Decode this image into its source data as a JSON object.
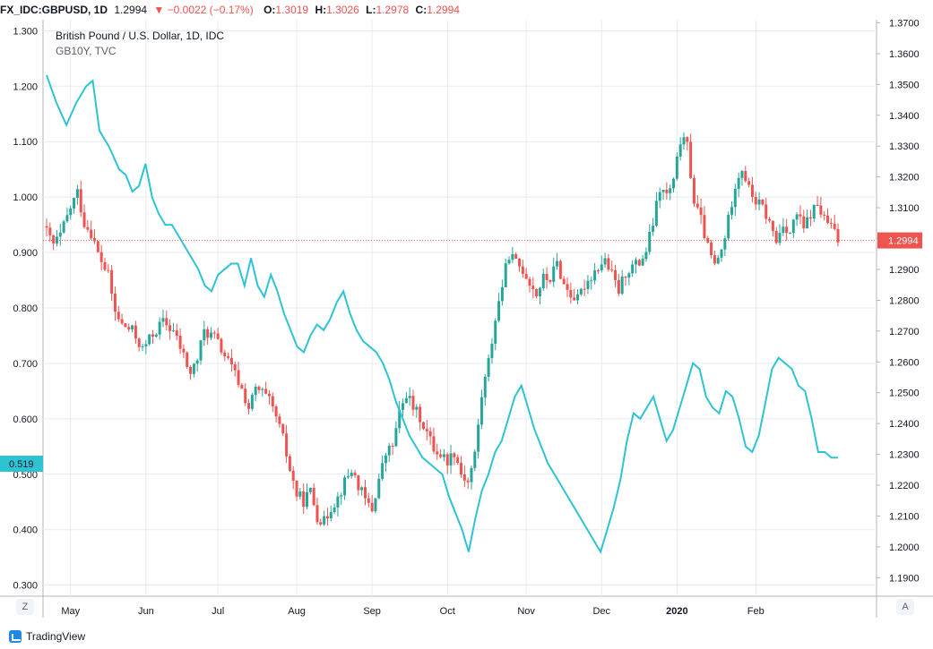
{
  "header": {
    "symbol": "FX_IDC:GBPUSD, 1D",
    "last": "1.2994",
    "change": "−0.0022 (−0.17%)",
    "o_label": "O:",
    "o_value": "1.3019",
    "h_label": "H:",
    "h_value": "1.3026",
    "l_label": "L:",
    "l_value": "1.2978",
    "c_label": "C:",
    "c_value": "1.2994"
  },
  "legend": {
    "line1": "British Pound / U.S. Dollar, 1D, IDC",
    "line2": "GB10Y, TVC"
  },
  "buttons": {
    "left_scale": "Z",
    "right_scale": "A"
  },
  "branding": "TradingView",
  "colors": {
    "up": "#26a69a",
    "down": "#ef5350",
    "bond_line": "#2ec3d3",
    "grid": "#e6eaf0",
    "text": "#131722",
    "price_line": "#ef5350"
  },
  "chart_data": {
    "type": "candlestick+line",
    "title": "British Pound / U.S. Dollar, 1D, IDC",
    "x_ticks": [
      "May",
      "Jun",
      "Jul",
      "Aug",
      "Sep",
      "Oct",
      "Nov",
      "Dec",
      "2020",
      "Feb"
    ],
    "left_axis": {
      "series": "GB10Y, TVC",
      "ticks": [
        "1.300",
        "1.200",
        "1.100",
        "1.000",
        "0.900",
        "0.800",
        "0.700",
        "0.600",
        "0.500",
        "0.400",
        "0.300"
      ],
      "ylim": [
        0.28,
        1.32
      ],
      "last_value_label": "0.519"
    },
    "right_axis": {
      "series": "British Pound / U.S. Dollar",
      "ticks": [
        "1.3700",
        "1.3600",
        "1.3500",
        "1.3400",
        "1.3300",
        "1.3200",
        "1.3100",
        "1.3000",
        "1.2900",
        "1.2800",
        "1.2700",
        "1.2600",
        "1.2500",
        "1.2400",
        "1.2300",
        "1.2200",
        "1.2100",
        "1.2000",
        "1.1900"
      ],
      "ylim": [
        1.184,
        1.371
      ],
      "last_value_label": "1.2994"
    },
    "gbpusd_close_keypoints": [
      [
        0,
        1.302
      ],
      [
        2,
        1.298
      ],
      [
        4,
        1.301
      ],
      [
        7,
        1.31
      ],
      [
        9,
        1.315
      ],
      [
        11,
        1.305
      ],
      [
        13,
        1.302
      ],
      [
        15,
        1.295
      ],
      [
        18,
        1.288
      ],
      [
        20,
        1.276
      ],
      [
        22,
        1.272
      ],
      [
        25,
        1.27
      ],
      [
        28,
        1.264
      ],
      [
        31,
        1.269
      ],
      [
        34,
        1.273
      ],
      [
        37,
        1.27
      ],
      [
        40,
        1.262
      ],
      [
        42,
        1.256
      ],
      [
        44,
        1.261
      ],
      [
        46,
        1.27
      ],
      [
        49,
        1.268
      ],
      [
        52,
        1.262
      ],
      [
        55,
        1.256
      ],
      [
        57,
        1.251
      ],
      [
        59,
        1.245
      ],
      [
        61,
        1.251
      ],
      [
        63,
        1.25
      ],
      [
        65,
        1.247
      ],
      [
        67,
        1.242
      ],
      [
        69,
        1.235
      ],
      [
        71,
        1.225
      ],
      [
        73,
        1.217
      ],
      [
        75,
        1.215
      ],
      [
        77,
        1.218
      ],
      [
        79,
        1.21
      ],
      [
        81,
        1.208
      ],
      [
        83,
        1.213
      ],
      [
        85,
        1.216
      ],
      [
        87,
        1.221
      ],
      [
        89,
        1.225
      ],
      [
        91,
        1.22
      ],
      [
        93,
        1.215
      ],
      [
        95,
        1.212
      ],
      [
        97,
        1.222
      ],
      [
        99,
        1.23
      ],
      [
        101,
        1.233
      ],
      [
        103,
        1.243
      ],
      [
        105,
        1.25
      ],
      [
        107,
        1.245
      ],
      [
        109,
        1.242
      ],
      [
        111,
        1.237
      ],
      [
        113,
        1.232
      ],
      [
        115,
        1.23
      ],
      [
        117,
        1.228
      ],
      [
        119,
        1.231
      ],
      [
        121,
        1.224
      ],
      [
        123,
        1.221
      ],
      [
        125,
        1.23
      ],
      [
        127,
        1.249
      ],
      [
        129,
        1.26
      ],
      [
        131,
        1.274
      ],
      [
        133,
        1.285
      ],
      [
        135,
        1.295
      ],
      [
        137,
        1.292
      ],
      [
        139,
        1.29
      ],
      [
        141,
        1.286
      ],
      [
        143,
        1.282
      ],
      [
        145,
        1.287
      ],
      [
        147,
        1.287
      ],
      [
        149,
        1.292
      ],
      [
        151,
        1.285
      ],
      [
        153,
        1.282
      ],
      [
        155,
        1.28
      ],
      [
        157,
        1.285
      ],
      [
        159,
        1.288
      ],
      [
        161,
        1.291
      ],
      [
        163,
        1.293
      ],
      [
        165,
        1.288
      ],
      [
        167,
        1.283
      ],
      [
        169,
        1.289
      ],
      [
        171,
        1.291
      ],
      [
        173,
        1.292
      ],
      [
        175,
        1.296
      ],
      [
        177,
        1.305
      ],
      [
        179,
        1.316
      ],
      [
        181,
        1.314
      ],
      [
        183,
        1.318
      ],
      [
        185,
        1.332
      ],
      [
        187,
        1.33
      ],
      [
        189,
        1.312
      ],
      [
        191,
        1.306
      ],
      [
        193,
        1.297
      ],
      [
        195,
        1.291
      ],
      [
        197,
        1.296
      ],
      [
        199,
        1.306
      ],
      [
        201,
        1.318
      ],
      [
        203,
        1.323
      ],
      [
        205,
        1.316
      ],
      [
        207,
        1.312
      ],
      [
        209,
        1.31
      ],
      [
        211,
        1.305
      ],
      [
        213,
        1.299
      ],
      [
        215,
        1.305
      ],
      [
        217,
        1.302
      ],
      [
        219,
        1.308
      ],
      [
        221,
        1.303
      ],
      [
        223,
        1.308
      ],
      [
        225,
        1.311
      ],
      [
        227,
        1.306
      ],
      [
        229,
        1.304
      ],
      [
        231,
        1.2994
      ]
    ],
    "gb10y_keypoints": [
      [
        0,
        1.22
      ],
      [
        3,
        1.17
      ],
      [
        6,
        1.13
      ],
      [
        9,
        1.17
      ],
      [
        12,
        1.2
      ],
      [
        14,
        1.21
      ],
      [
        16,
        1.12
      ],
      [
        19,
        1.09
      ],
      [
        22,
        1.05
      ],
      [
        24,
        1.04
      ],
      [
        26,
        1.01
      ],
      [
        28,
        1.02
      ],
      [
        30,
        1.06
      ],
      [
        32,
        1.0
      ],
      [
        34,
        0.97
      ],
      [
        36,
        0.95
      ],
      [
        38,
        0.95
      ],
      [
        40,
        0.93
      ],
      [
        42,
        0.91
      ],
      [
        44,
        0.89
      ],
      [
        46,
        0.87
      ],
      [
        48,
        0.84
      ],
      [
        50,
        0.83
      ],
      [
        52,
        0.86
      ],
      [
        54,
        0.87
      ],
      [
        56,
        0.88
      ],
      [
        58,
        0.88
      ],
      [
        60,
        0.84
      ],
      [
        62,
        0.89
      ],
      [
        64,
        0.84
      ],
      [
        66,
        0.82
      ],
      [
        68,
        0.86
      ],
      [
        70,
        0.83
      ],
      [
        72,
        0.79
      ],
      [
        74,
        0.76
      ],
      [
        76,
        0.73
      ],
      [
        78,
        0.72
      ],
      [
        80,
        0.75
      ],
      [
        82,
        0.77
      ],
      [
        84,
        0.76
      ],
      [
        86,
        0.78
      ],
      [
        88,
        0.81
      ],
      [
        90,
        0.83
      ],
      [
        92,
        0.79
      ],
      [
        94,
        0.76
      ],
      [
        96,
        0.74
      ],
      [
        98,
        0.73
      ],
      [
        100,
        0.72
      ],
      [
        102,
        0.7
      ],
      [
        104,
        0.67
      ],
      [
        106,
        0.63
      ],
      [
        108,
        0.6
      ],
      [
        110,
        0.57
      ],
      [
        112,
        0.55
      ],
      [
        114,
        0.53
      ],
      [
        116,
        0.52
      ],
      [
        118,
        0.51
      ],
      [
        120,
        0.5
      ],
      [
        122,
        0.46
      ],
      [
        124,
        0.43
      ],
      [
        126,
        0.4
      ],
      [
        128,
        0.36
      ],
      [
        130,
        0.42
      ],
      [
        132,
        0.47
      ],
      [
        134,
        0.5
      ],
      [
        136,
        0.54
      ],
      [
        138,
        0.56
      ],
      [
        140,
        0.6
      ],
      [
        142,
        0.64
      ],
      [
        144,
        0.66
      ],
      [
        146,
        0.62
      ],
      [
        148,
        0.58
      ],
      [
        150,
        0.55
      ],
      [
        152,
        0.52
      ],
      [
        154,
        0.5
      ],
      [
        156,
        0.48
      ],
      [
        158,
        0.46
      ],
      [
        160,
        0.44
      ],
      [
        162,
        0.42
      ],
      [
        164,
        0.4
      ],
      [
        166,
        0.38
      ],
      [
        168,
        0.36
      ],
      [
        170,
        0.4
      ],
      [
        172,
        0.44
      ],
      [
        174,
        0.49
      ],
      [
        176,
        0.56
      ],
      [
        178,
        0.61
      ],
      [
        180,
        0.6
      ],
      [
        182,
        0.62
      ],
      [
        184,
        0.64
      ],
      [
        186,
        0.6
      ],
      [
        188,
        0.56
      ],
      [
        190,
        0.58
      ],
      [
        192,
        0.62
      ],
      [
        194,
        0.66
      ],
      [
        196,
        0.7
      ],
      [
        198,
        0.69
      ],
      [
        200,
        0.64
      ],
      [
        202,
        0.62
      ],
      [
        204,
        0.61
      ],
      [
        206,
        0.65
      ],
      [
        208,
        0.64
      ],
      [
        210,
        0.6
      ],
      [
        212,
        0.55
      ],
      [
        214,
        0.54
      ],
      [
        216,
        0.57
      ],
      [
        218,
        0.63
      ],
      [
        220,
        0.69
      ],
      [
        222,
        0.71
      ],
      [
        224,
        0.7
      ],
      [
        226,
        0.69
      ],
      [
        228,
        0.66
      ],
      [
        230,
        0.65
      ],
      [
        232,
        0.6
      ],
      [
        234,
        0.54
      ],
      [
        236,
        0.54
      ],
      [
        238,
        0.53
      ],
      [
        240,
        0.53
      ]
    ]
  }
}
